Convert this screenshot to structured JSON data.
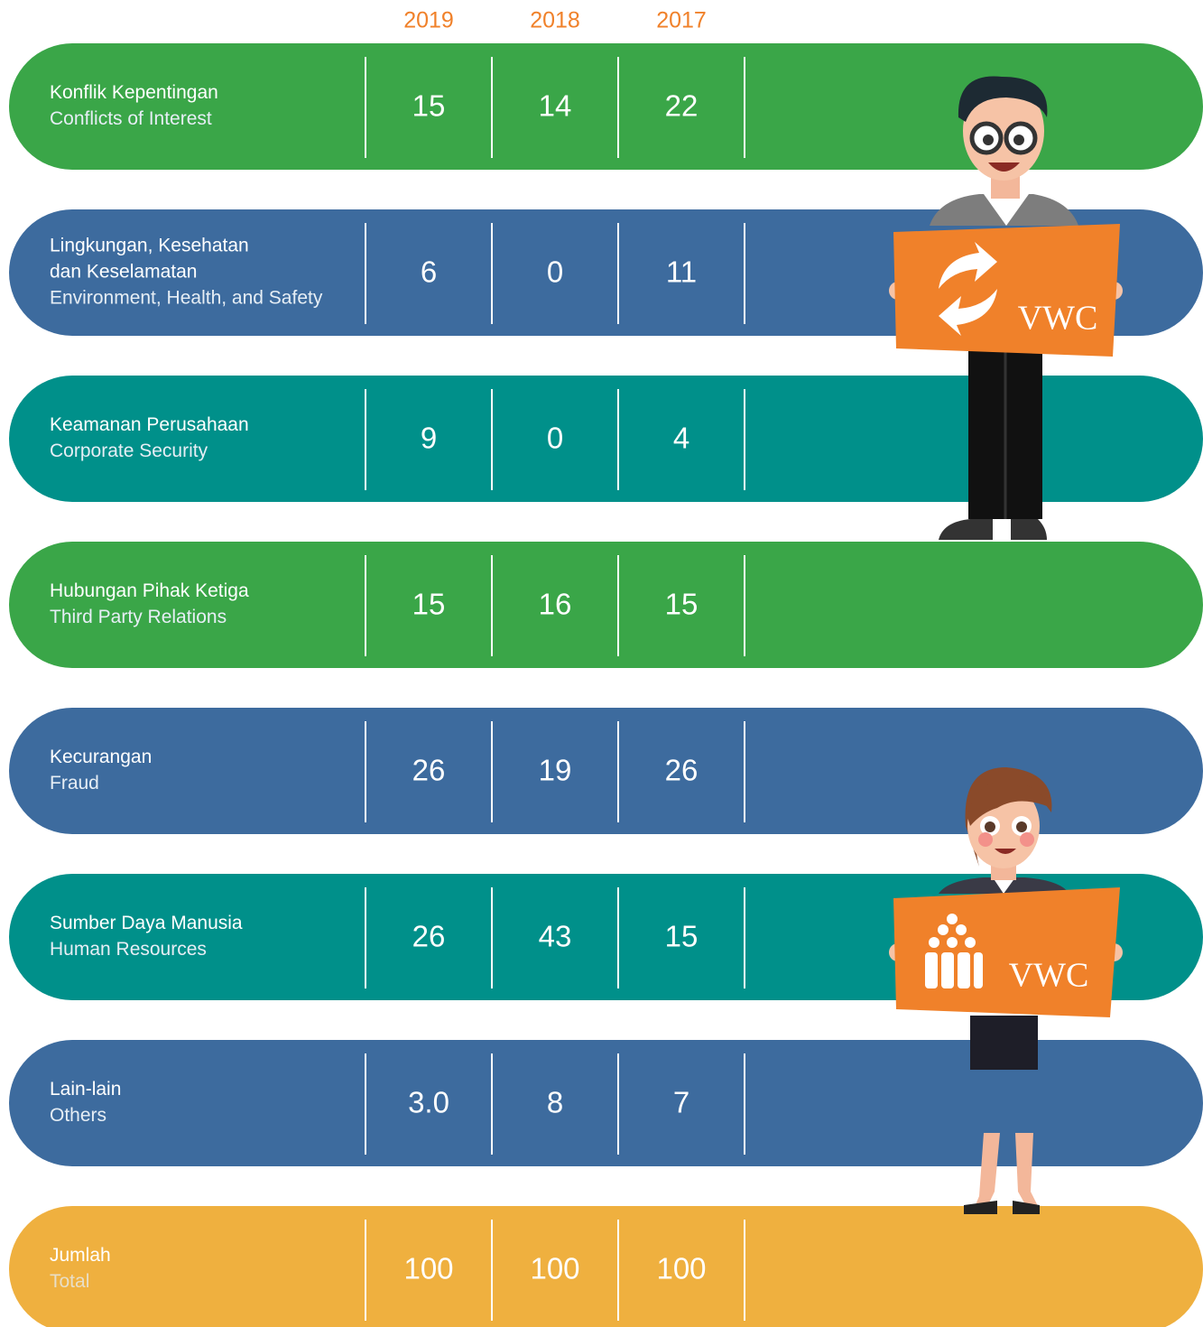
{
  "header": {
    "years": [
      "2019",
      "2018",
      "2017"
    ]
  },
  "table": {
    "rows": [
      {
        "label": [
          "Konflik Kepentingan",
          "Conflicts of Interest"
        ],
        "values": [
          "15",
          "14",
          "22"
        ]
      },
      {
        "label": [
          "Lingkungan, Kesehatan",
          "dan Keselamatan",
          "Environment, Health, and Safety"
        ],
        "values": [
          "6",
          "0",
          "11"
        ]
      },
      {
        "label": [
          "Keamanan Perusahaan",
          "Corporate Security"
        ],
        "values": [
          "9",
          "0",
          "4"
        ]
      },
      {
        "label": [
          "Hubungan Pihak Ketiga",
          "Third Party Relations"
        ],
        "values": [
          "15",
          "16",
          "15"
        ]
      },
      {
        "label": [
          "Kecurangan",
          "Fraud"
        ],
        "values": [
          "26",
          "19",
          "26"
        ]
      },
      {
        "label": [
          "Sumber Daya Manusia",
          "Human Resources"
        ],
        "values": [
          "26",
          "43",
          "15"
        ]
      },
      {
        "label": [
          "Lain-lain",
          "Others"
        ],
        "values": [
          "3.0",
          "8",
          "7"
        ]
      },
      {
        "label": [
          "Jumlah",
          "Total"
        ],
        "values": [
          "100",
          "100",
          "100"
        ]
      }
    ]
  },
  "illustrations": [
    {
      "sign": "VWC"
    },
    {
      "sign": "VWC"
    }
  ]
}
